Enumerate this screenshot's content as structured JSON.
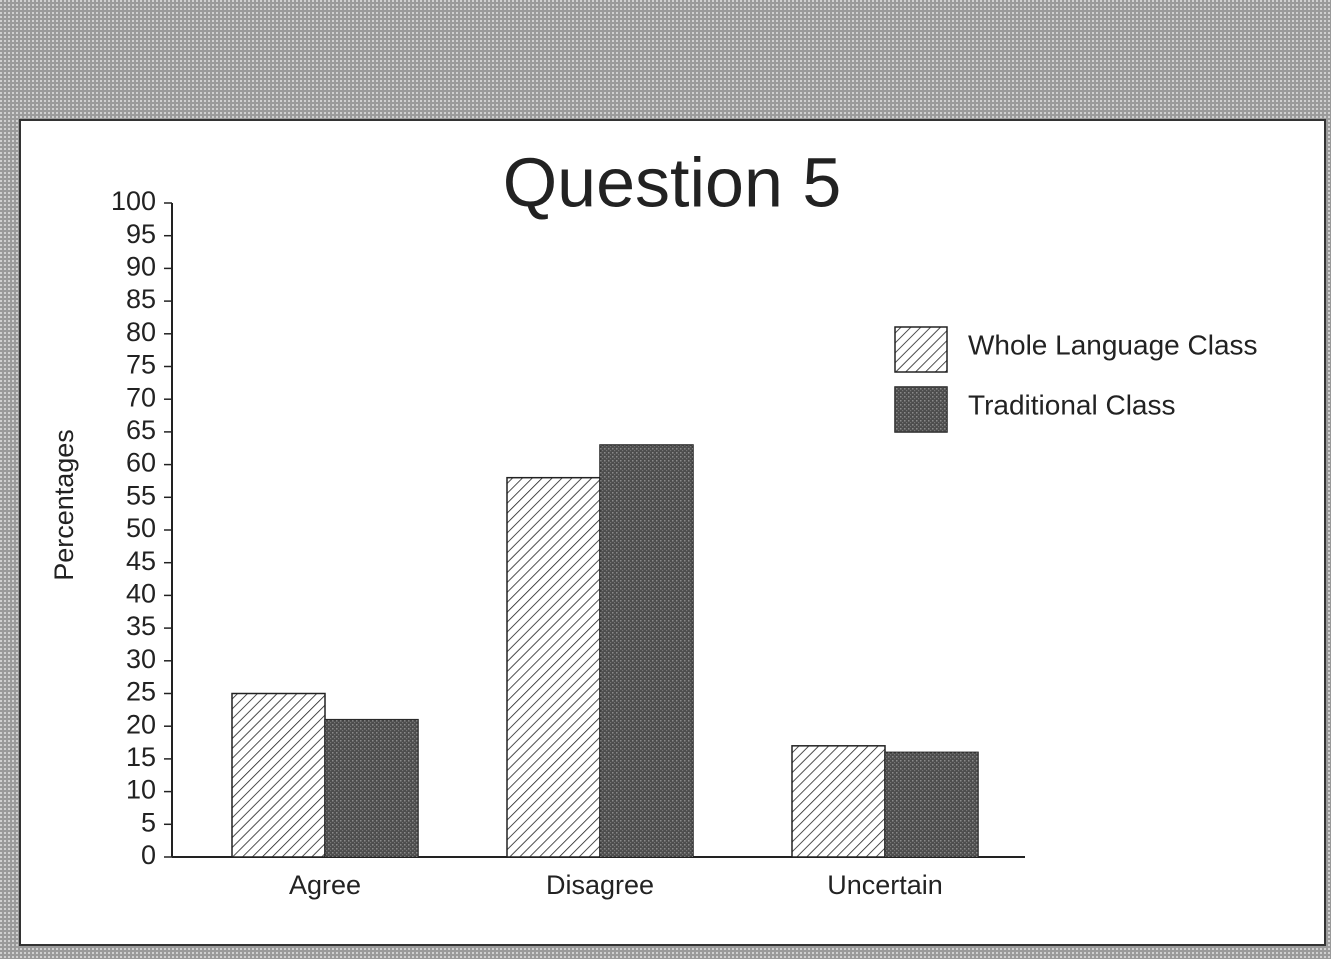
{
  "chart_data": {
    "type": "bar",
    "title": "Question 5",
    "ylabel": "Percentages",
    "categories": [
      "Agree",
      "Disagree",
      "Uncertain"
    ],
    "series": [
      {
        "name": "Whole Language Class",
        "color": "#ffffff",
        "hatch": true,
        "values": [
          25,
          58,
          17
        ]
      },
      {
        "name": "Traditional Class",
        "color": "#5a5a5a",
        "hatch": false,
        "values": [
          21,
          63,
          16
        ]
      }
    ],
    "ylim": [
      0,
      100
    ],
    "yticks": [
      0,
      5,
      10,
      15,
      20,
      25,
      30,
      35,
      40,
      45,
      50,
      55,
      60,
      65,
      70,
      75,
      80,
      85,
      90,
      95,
      100
    ],
    "grid": false,
    "legend": "upper right"
  }
}
